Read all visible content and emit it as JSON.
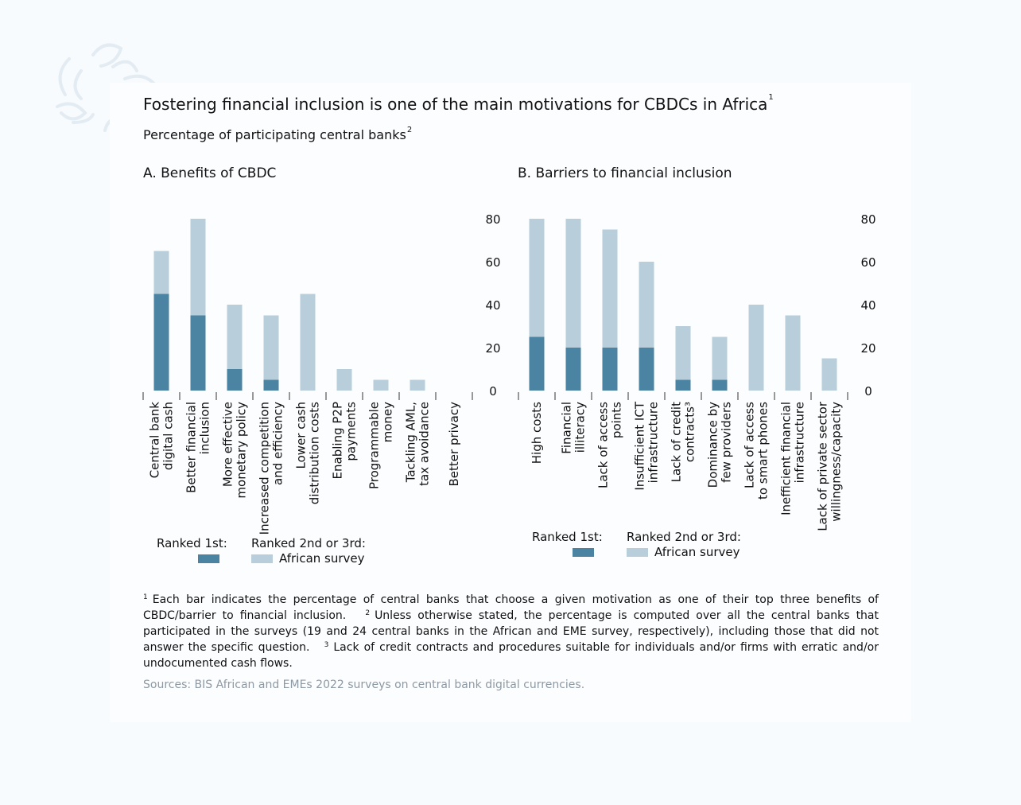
{
  "title": "Fostering financial inclusion is one of the main motivations for CBDCs in Africa",
  "title_note": "1",
  "subtitle": "Percentage of participating central banks",
  "subtitle_note": "2",
  "colors": {
    "ranked_1st": "#4b83a3",
    "ranked_2nd_3rd": "#b8cfdb",
    "background": "#f8fbfe"
  },
  "chart_data": [
    {
      "type": "bar",
      "stacked": true,
      "title": "A. Benefits of CBDC",
      "categories": [
        [
          "Central bank",
          "digital cash"
        ],
        [
          "Better financial",
          "inclusion"
        ],
        [
          "More effective",
          "monetary policy"
        ],
        [
          "Increased competition",
          "and efficiency"
        ],
        [
          "Lower cash",
          "distribution costs"
        ],
        [
          "Enabling P2P",
          "payments"
        ],
        [
          "Programmable",
          "money"
        ],
        [
          "Tackling AML,",
          "tax avoidance"
        ],
        [
          "Better privacy"
        ]
      ],
      "series": [
        {
          "name": "Ranked 1st:",
          "values": [
            45,
            35,
            10,
            5,
            0,
            0,
            0,
            0,
            0
          ]
        },
        {
          "name": "Ranked 2nd or 3rd:",
          "values": [
            20,
            45,
            30,
            30,
            45,
            10,
            5,
            5,
            0
          ]
        }
      ],
      "ylim": [
        0,
        80
      ],
      "yticks": [
        "0",
        "20",
        "40",
        "60",
        "80"
      ],
      "y_axis_side": "right",
      "grid": false,
      "legend": {
        "position": "bottom",
        "label_1st": "Ranked 1st:",
        "label_2nd": "Ranked 2nd or 3rd:",
        "label_2nd_sub": "African survey"
      }
    },
    {
      "type": "bar",
      "stacked": true,
      "title": "B. Barriers to financial inclusion",
      "categories": [
        [
          "High costs"
        ],
        [
          "Financial",
          "illiteracy"
        ],
        [
          "Lack of access",
          "points"
        ],
        [
          "Insufficient ICT",
          "infrastructure"
        ],
        [
          "Lack of credit",
          "contracts³"
        ],
        [
          "Dominance by",
          "few providers"
        ],
        [
          "Lack of access",
          "to smart phones"
        ],
        [
          "Inefficient financial",
          "infrastructure"
        ],
        [
          "Lack of private sector",
          "willingness/capacity"
        ]
      ],
      "series": [
        {
          "name": "Ranked 1st:",
          "values": [
            25,
            20,
            20,
            20,
            5,
            5,
            0,
            0,
            0
          ]
        },
        {
          "name": "Ranked 2nd or 3rd:",
          "values": [
            55,
            60,
            55,
            40,
            25,
            20,
            40,
            35,
            15
          ]
        }
      ],
      "ylim": [
        0,
        80
      ],
      "yticks": [
        "0",
        "20",
        "40",
        "60",
        "80"
      ],
      "y_axis_side": "right",
      "grid": false,
      "legend": {
        "position": "bottom",
        "label_1st": "Ranked 1st:",
        "label_2nd": "Ranked 2nd or 3rd:",
        "label_2nd_sub": "African survey"
      }
    }
  ],
  "footnotes": [
    {
      "mark": "1",
      "text": "Each bar indicates the percentage of central banks that choose a given motivation as one of their top three benefits of CBDC/barrier to financial inclusion."
    },
    {
      "mark": "2",
      "text": "Unless otherwise stated, the percentage is computed over all the central banks that participated in the surveys (19 and 24 central banks in the African and EME survey, respectively), including those that did not answer the specific question."
    },
    {
      "mark": "3",
      "text": "Lack of credit contracts and procedures suitable for individuals and/or firms with erratic and/or undocumented cash flows."
    }
  ],
  "sources": "Sources: BIS African and EMEs 2022 surveys on central bank digital currencies."
}
